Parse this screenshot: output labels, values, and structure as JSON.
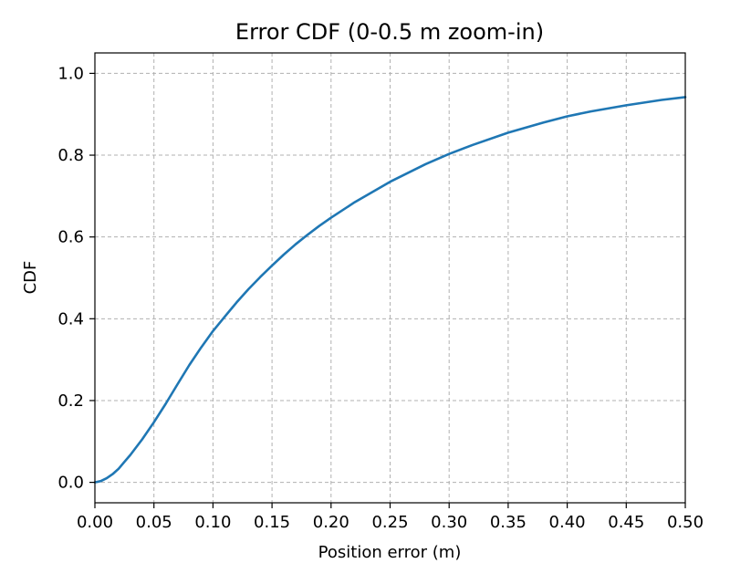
{
  "chart_data": {
    "type": "line",
    "title": "Error CDF (0-0.5 m zoom-in)",
    "xlabel": "Position error (m)",
    "ylabel": "CDF",
    "xlim": [
      0,
      0.5
    ],
    "ylim": [
      -0.05,
      1.05
    ],
    "xticks": [
      "0.00",
      "0.05",
      "0.10",
      "0.15",
      "0.20",
      "0.25",
      "0.30",
      "0.35",
      "0.40",
      "0.45",
      "0.50"
    ],
    "yticks": [
      "0.0",
      "0.2",
      "0.4",
      "0.6",
      "0.8",
      "1.0"
    ],
    "grid": true,
    "series": [
      {
        "color": "#1f77b4",
        "x": [
          0.0,
          0.005,
          0.01,
          0.015,
          0.02,
          0.025,
          0.03,
          0.04,
          0.05,
          0.06,
          0.07,
          0.08,
          0.09,
          0.1,
          0.11,
          0.12,
          0.13,
          0.14,
          0.15,
          0.16,
          0.17,
          0.18,
          0.19,
          0.2,
          0.22,
          0.25,
          0.28,
          0.3,
          0.32,
          0.35,
          0.38,
          0.4,
          0.42,
          0.45,
          0.48,
          0.5
        ],
        "y": [
          0.0,
          0.003,
          0.01,
          0.02,
          0.033,
          0.05,
          0.067,
          0.105,
          0.147,
          0.192,
          0.24,
          0.287,
          0.33,
          0.37,
          0.405,
          0.44,
          0.472,
          0.502,
          0.53,
          0.557,
          0.582,
          0.605,
          0.627,
          0.647,
          0.685,
          0.735,
          0.778,
          0.803,
          0.825,
          0.855,
          0.88,
          0.895,
          0.907,
          0.922,
          0.935,
          0.942
        ]
      }
    ]
  }
}
